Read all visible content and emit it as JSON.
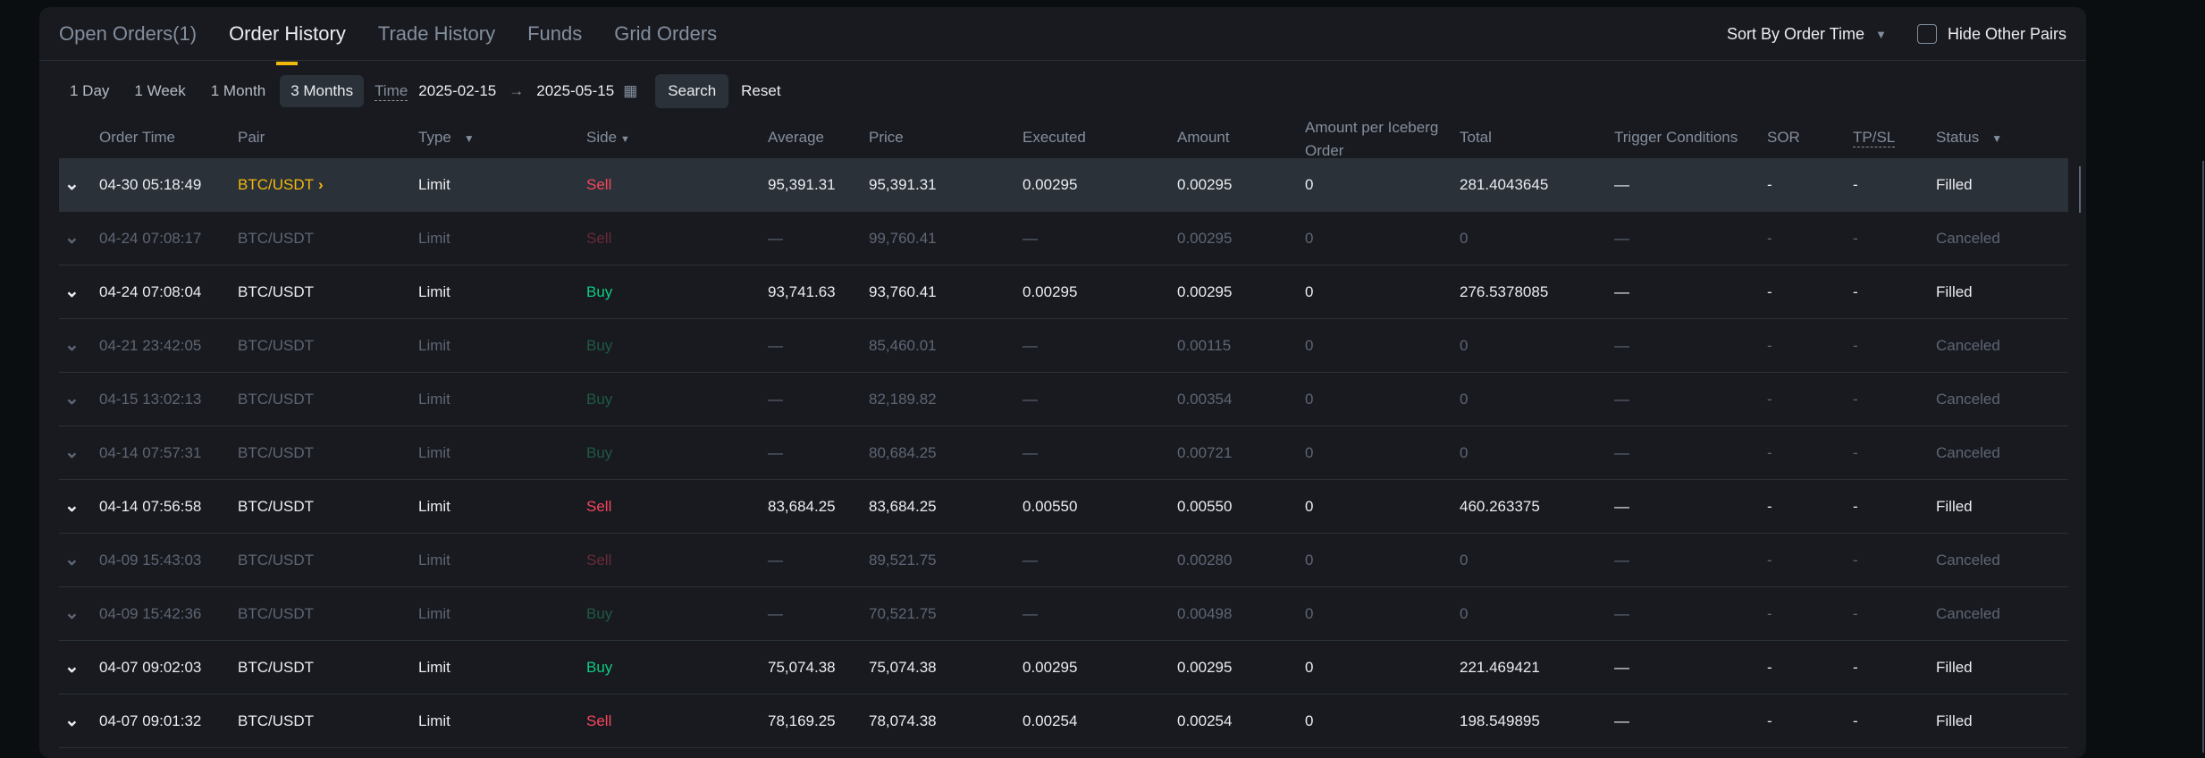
{
  "tabs": [
    "Open Orders(1)",
    "Order History",
    "Trade History",
    "Funds",
    "Grid Orders"
  ],
  "active_tab": 1,
  "sort_label": "Sort By Order Time",
  "hide_other_pairs_label": "Hide Other Pairs",
  "hide_other_pairs_checked": false,
  "filters": {
    "ranges": [
      "1 Day",
      "1 Week",
      "1 Month",
      "3 Months"
    ],
    "active_range": 3,
    "time_label": "Time",
    "start_date": "2025-02-15",
    "arrow": "→",
    "end_date": "2025-05-15",
    "search": "Search",
    "reset": "Reset"
  },
  "columns": {
    "order_time": "Order Time",
    "pair": "Pair",
    "type": "Type",
    "side": "Side",
    "average": "Average",
    "price": "Price",
    "executed": "Executed",
    "amount": "Amount",
    "iceberg": "Amount per Iceberg Order",
    "total": "Total",
    "trigger": "Trigger Conditions",
    "sor": "SOR",
    "tpsl": "TP/SL",
    "status": "Status"
  },
  "colors": {
    "accent": "#f0b90b",
    "sell": "#f6465d",
    "buy": "#0ecb81",
    "background": "#181a20"
  },
  "orders": [
    {
      "time": "04-30 05:18:49",
      "pair": "BTC/USDT",
      "type": "Limit",
      "side": "Sell",
      "average": "95,391.31",
      "price": "95,391.31",
      "executed": "0.00295",
      "amount": "0.00295",
      "iceberg": "0",
      "total": "281.4043645",
      "trigger": "—",
      "sor": "-",
      "tpsl": "-",
      "status": "Filled"
    },
    {
      "time": "04-24 07:08:17",
      "pair": "BTC/USDT",
      "type": "Limit",
      "side": "Sell",
      "average": "—",
      "price": "99,760.41",
      "executed": "—",
      "amount": "0.00295",
      "iceberg": "0",
      "total": "0",
      "trigger": "—",
      "sor": "-",
      "tpsl": "-",
      "status": "Canceled"
    },
    {
      "time": "04-24 07:08:04",
      "pair": "BTC/USDT",
      "type": "Limit",
      "side": "Buy",
      "average": "93,741.63",
      "price": "93,760.41",
      "executed": "0.00295",
      "amount": "0.00295",
      "iceberg": "0",
      "total": "276.5378085",
      "trigger": "—",
      "sor": "-",
      "tpsl": "-",
      "status": "Filled"
    },
    {
      "time": "04-21 23:42:05",
      "pair": "BTC/USDT",
      "type": "Limit",
      "side": "Buy",
      "average": "—",
      "price": "85,460.01",
      "executed": "—",
      "amount": "0.00115",
      "iceberg": "0",
      "total": "0",
      "trigger": "—",
      "sor": "-",
      "tpsl": "-",
      "status": "Canceled"
    },
    {
      "time": "04-15 13:02:13",
      "pair": "BTC/USDT",
      "type": "Limit",
      "side": "Buy",
      "average": "—",
      "price": "82,189.82",
      "executed": "—",
      "amount": "0.00354",
      "iceberg": "0",
      "total": "0",
      "trigger": "—",
      "sor": "-",
      "tpsl": "-",
      "status": "Canceled"
    },
    {
      "time": "04-14 07:57:31",
      "pair": "BTC/USDT",
      "type": "Limit",
      "side": "Buy",
      "average": "—",
      "price": "80,684.25",
      "executed": "—",
      "amount": "0.00721",
      "iceberg": "0",
      "total": "0",
      "trigger": "—",
      "sor": "-",
      "tpsl": "-",
      "status": "Canceled"
    },
    {
      "time": "04-14 07:56:58",
      "pair": "BTC/USDT",
      "type": "Limit",
      "side": "Sell",
      "average": "83,684.25",
      "price": "83,684.25",
      "executed": "0.00550",
      "amount": "0.00550",
      "iceberg": "0",
      "total": "460.263375",
      "trigger": "—",
      "sor": "-",
      "tpsl": "-",
      "status": "Filled"
    },
    {
      "time": "04-09 15:43:03",
      "pair": "BTC/USDT",
      "type": "Limit",
      "side": "Sell",
      "average": "—",
      "price": "89,521.75",
      "executed": "—",
      "amount": "0.00280",
      "iceberg": "0",
      "total": "0",
      "trigger": "—",
      "sor": "-",
      "tpsl": "-",
      "status": "Canceled"
    },
    {
      "time": "04-09 15:42:36",
      "pair": "BTC/USDT",
      "type": "Limit",
      "side": "Buy",
      "average": "—",
      "price": "70,521.75",
      "executed": "—",
      "amount": "0.00498",
      "iceberg": "0",
      "total": "0",
      "trigger": "—",
      "sor": "-",
      "tpsl": "-",
      "status": "Canceled"
    },
    {
      "time": "04-07 09:02:03",
      "pair": "BTC/USDT",
      "type": "Limit",
      "side": "Buy",
      "average": "75,074.38",
      "price": "75,074.38",
      "executed": "0.00295",
      "amount": "0.00295",
      "iceberg": "0",
      "total": "221.469421",
      "trigger": "—",
      "sor": "-",
      "tpsl": "-",
      "status": "Filled"
    },
    {
      "time": "04-07 09:01:32",
      "pair": "BTC/USDT",
      "type": "Limit",
      "side": "Sell",
      "average": "78,169.25",
      "price": "78,074.38",
      "executed": "0.00254",
      "amount": "0.00254",
      "iceberg": "0",
      "total": "198.549895",
      "trigger": "—",
      "sor": "-",
      "tpsl": "-",
      "status": "Filled"
    }
  ]
}
